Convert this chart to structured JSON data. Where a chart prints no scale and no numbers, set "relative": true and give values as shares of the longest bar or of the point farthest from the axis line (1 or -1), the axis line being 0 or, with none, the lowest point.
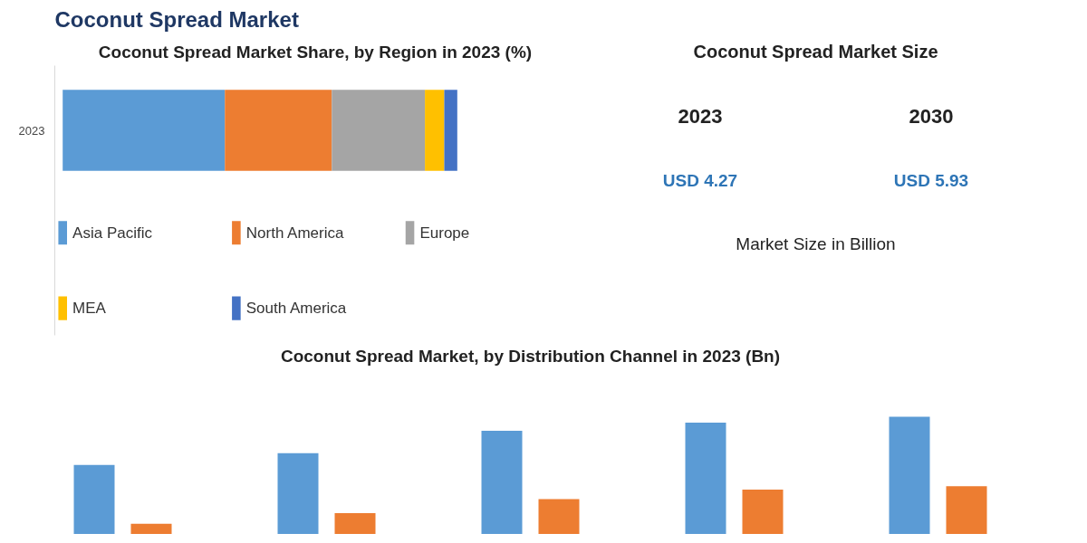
{
  "chart_data": [
    {
      "type": "bar",
      "title": "Coconut Spread Market",
      "subtitle": "Coconut Spread Market Share, by Region in 2023 (%)",
      "orientation": "horizontal",
      "stacked": true,
      "relative": true,
      "categories": [
        "2023"
      ],
      "legend": "bottom",
      "series": [
        {
          "name": "Asia Pacific",
          "color": "#5b9bd5",
          "values": [
            0.411
          ]
        },
        {
          "name": "North America",
          "color": "#ed7d31",
          "values": [
            0.271
          ]
        },
        {
          "name": "Europe",
          "color": "#a5a5a5",
          "values": [
            0.236
          ]
        },
        {
          "name": "MEA",
          "color": "#ffc000",
          "values": [
            0.049
          ]
        },
        {
          "name": "South America",
          "color": "#4472c4",
          "values": [
            0.033
          ]
        }
      ]
    },
    {
      "type": "other",
      "title": "Coconut Spread Market Size",
      "annotations": [
        "2023",
        "2030",
        "USD 4.27",
        "USD 5.93",
        "Market Size in Billion"
      ]
    },
    {
      "type": "bar",
      "title": "Coconut Spread Market, by Distribution Channel in 2023 (Bn)",
      "relative": true,
      "categories": [
        null,
        null,
        null,
        null,
        null
      ],
      "series": [
        {
          "color": "#5b9bd5",
          "values": [
            0.59,
            0.69,
            0.88,
            0.95,
            1.0
          ]
        },
        {
          "color": "#ed7d31",
          "values": [
            0.09,
            0.18,
            0.3,
            0.38,
            0.41
          ]
        }
      ]
    }
  ]
}
